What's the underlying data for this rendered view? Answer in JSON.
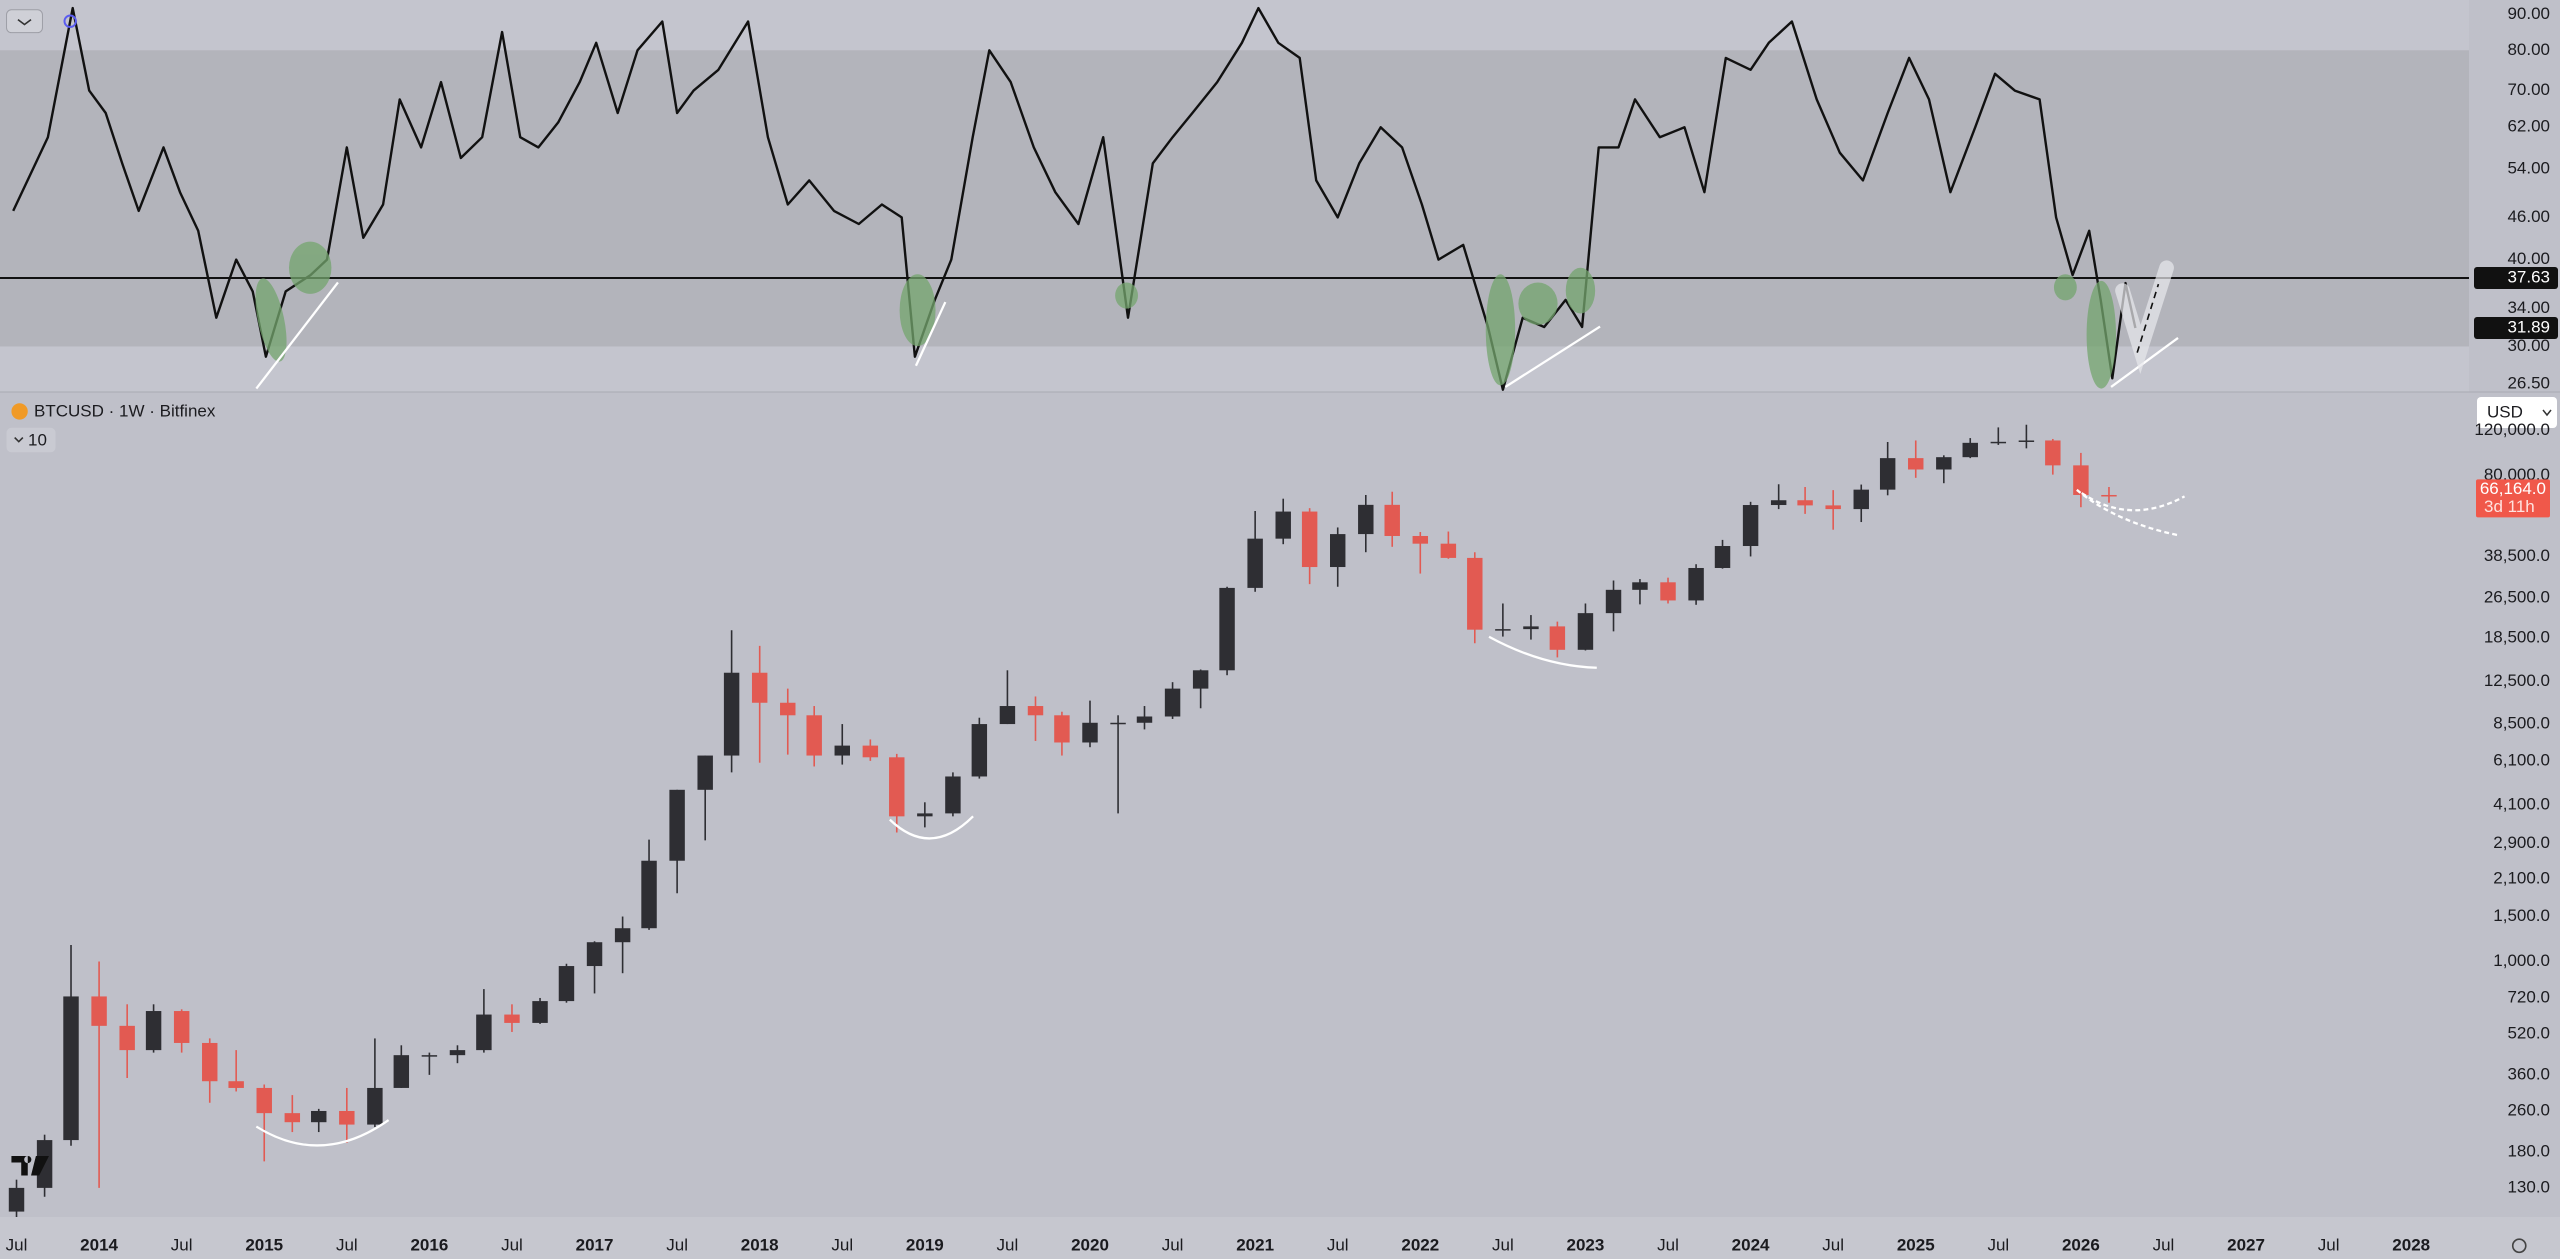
{
  "chart_data": [
    {
      "type": "line",
      "color": "#111111",
      "log": true,
      "band": [
        30,
        80
      ],
      "hline": 37.63,
      "last_value": 31.89,
      "xlim": [
        2013.4,
        2028.35
      ],
      "ylim": [
        25.8,
        94.5
      ],
      "yticks": [
        {
          "value": 26.5,
          "label": "26.50"
        },
        {
          "value": 30,
          "label": "30.00"
        },
        {
          "value": 34,
          "label": "34.00"
        },
        {
          "value": 40,
          "label": "40.00"
        },
        {
          "value": 46,
          "label": "46.00"
        },
        {
          "value": 54,
          "label": "54.00"
        },
        {
          "value": 62,
          "label": "62.00"
        },
        {
          "value": 70,
          "label": "70.00"
        },
        {
          "value": 80,
          "label": "80.00"
        },
        {
          "value": 90,
          "label": "90.00"
        }
      ],
      "x": [
        2013.48,
        2013.69,
        2013.84,
        2013.94,
        2014.04,
        2014.14,
        2014.24,
        2014.39,
        2014.49,
        2014.6,
        2014.71,
        2014.83,
        2014.93,
        2015.01,
        2015.13,
        2015.28,
        2015.38,
        2015.5,
        2015.6,
        2015.72,
        2015.82,
        2015.95,
        2016.07,
        2016.19,
        2016.32,
        2016.44,
        2016.55,
        2016.66,
        2016.78,
        2016.91,
        2017.01,
        2017.14,
        2017.26,
        2017.41,
        2017.5,
        2017.6,
        2017.75,
        2017.93,
        2018.05,
        2018.17,
        2018.3,
        2018.45,
        2018.6,
        2018.74,
        2018.86,
        2018.94,
        2019.06,
        2019.16,
        2019.29,
        2019.39,
        2019.52,
        2019.66,
        2019.79,
        2019.93,
        2020.08,
        2020.23,
        2020.38,
        2020.5,
        2020.62,
        2020.77,
        2020.92,
        2021.02,
        2021.14,
        2021.27,
        2021.37,
        2021.5,
        2021.63,
        2021.76,
        2021.89,
        2022.01,
        2022.11,
        2022.26,
        2022.41,
        2022.5,
        2022.62,
        2022.75,
        2022.88,
        2022.98,
        2023.08,
        2023.2,
        2023.3,
        2023.45,
        2023.6,
        2023.72,
        2023.85,
        2024.0,
        2024.11,
        2024.25,
        2024.4,
        2024.54,
        2024.68,
        2024.83,
        2024.96,
        2025.08,
        2025.21,
        2025.36,
        2025.48,
        2025.6,
        2025.75,
        2025.85,
        2025.95,
        2026.05,
        2026.12,
        2026.19,
        2026.27,
        2026.33
      ],
      "values": [
        47,
        60,
        92,
        70,
        65,
        55,
        47,
        58,
        50,
        44,
        33,
        40,
        36,
        29,
        36,
        38,
        40,
        58,
        43,
        48,
        68,
        58,
        72,
        56,
        60,
        85,
        60,
        58,
        63,
        72,
        82,
        65,
        80,
        88,
        65,
        70,
        75,
        88,
        60,
        48,
        52,
        47,
        45,
        48,
        46,
        29,
        35,
        40,
        60,
        80,
        72,
        58,
        50,
        45,
        60,
        33,
        55,
        60,
        65,
        72,
        82,
        92,
        82,
        78,
        52,
        46,
        55,
        62,
        58,
        48,
        40,
        42,
        32,
        26,
        33,
        32,
        35,
        32,
        58,
        58,
        68,
        60,
        62,
        50,
        78,
        75,
        82,
        88,
        68,
        57,
        52,
        65,
        78,
        68,
        50,
        62,
        74,
        70,
        68,
        46,
        38,
        44,
        35,
        27,
        37,
        31.89
      ]
    },
    {
      "type": "candlestick",
      "title": "BTCUSD · 1W · Bitfinex",
      "log": true,
      "up_color": "#2e2e33",
      "down_color": "#e25a52",
      "last_price": {
        "value": 66164,
        "label": "66,164.0"
      },
      "countdown": "3d 11h",
      "xlim": [
        2013.4,
        2028.35
      ],
      "ylim": [
        100,
        169500
      ],
      "yticks": [
        {
          "value": 130,
          "label": "130.0"
        },
        {
          "value": 180,
          "label": "180.0"
        },
        {
          "value": 260,
          "label": "260.0"
        },
        {
          "value": 360,
          "label": "360.0"
        },
        {
          "value": 520,
          "label": "520.0"
        },
        {
          "value": 720,
          "label": "720.0"
        },
        {
          "value": 1000,
          "label": "1,000.0"
        },
        {
          "value": 1500,
          "label": "1,500.0"
        },
        {
          "value": 2100,
          "label": "2,100.0"
        },
        {
          "value": 2900,
          "label": "2,900.0"
        },
        {
          "value": 4100,
          "label": "4,100.0"
        },
        {
          "value": 6100,
          "label": "6,100.0"
        },
        {
          "value": 8500,
          "label": "8,500.0"
        },
        {
          "value": 12500,
          "label": "12,500.0"
        },
        {
          "value": 18500,
          "label": "18,500.0"
        },
        {
          "value": 26500,
          "label": "26,500.0"
        },
        {
          "value": 38500,
          "label": "38,500.0"
        },
        {
          "value": 80000,
          "label": "80,000.0"
        },
        {
          "value": 120000,
          "label": "120,000.0"
        }
      ],
      "xticks": [
        {
          "value": 2013.5,
          "label": "Jul"
        },
        2014,
        {
          "value": 2014.5,
          "label": "Jul"
        },
        2015,
        {
          "value": 2015.5,
          "label": "Jul"
        },
        2016,
        {
          "value": 2016.5,
          "label": "Jul"
        },
        2017,
        {
          "value": 2017.5,
          "label": "Jul"
        },
        2018,
        {
          "value": 2018.5,
          "label": "Jul"
        },
        2019,
        {
          "value": 2019.5,
          "label": "Jul"
        },
        2020,
        {
          "value": 2020.5,
          "label": "Jul"
        },
        2021,
        {
          "value": 2021.5,
          "label": "Jul"
        },
        2022,
        {
          "value": 2022.5,
          "label": "Jul"
        },
        2023,
        {
          "value": 2023.5,
          "label": "Jul"
        },
        2024,
        {
          "value": 2024.5,
          "label": "Jul"
        },
        2025,
        {
          "value": 2025.5,
          "label": "Jul"
        },
        2026,
        {
          "value": 2026.5,
          "label": "Jul"
        },
        2027,
        {
          "value": 2027.5,
          "label": "Jul"
        },
        2028
      ],
      "x": [
        2013.5,
        2013.67,
        2013.83,
        2014,
        2014.17,
        2014.33,
        2014.5,
        2014.67,
        2014.83,
        2015,
        2015.17,
        2015.33,
        2015.5,
        2015.67,
        2015.83,
        2016,
        2016.17,
        2016.33,
        2016.5,
        2016.67,
        2016.83,
        2017,
        2017.17,
        2017.33,
        2017.5,
        2017.67,
        2017.83,
        2018,
        2018.17,
        2018.33,
        2018.5,
        2018.67,
        2018.83,
        2019,
        2019.17,
        2019.33,
        2019.5,
        2019.67,
        2019.83,
        2020,
        2020.17,
        2020.33,
        2020.5,
        2020.67,
        2020.83,
        2021,
        2021.17,
        2021.33,
        2021.5,
        2021.67,
        2021.83,
        2022,
        2022.17,
        2022.33,
        2022.5,
        2022.67,
        2022.83,
        2023,
        2023.17,
        2023.33,
        2023.5,
        2023.67,
        2023.83,
        2024,
        2024.17,
        2024.33,
        2024.5,
        2024.67,
        2024.83,
        2025,
        2025.17,
        2025.33,
        2025.5,
        2025.67,
        2025.83,
        2026,
        2026.17
      ],
      "open": [
        105,
        130,
        200,
        730,
        560,
        450,
        640,
        480,
        340,
        320,
        255,
        235,
        260,
        230,
        320,
        430,
        430,
        450,
        620,
        575,
        700,
        960,
        1190,
        1350,
        2480,
        4700,
        6400,
        13500,
        10300,
        9200,
        6400,
        7000,
        6300,
        3700,
        3800,
        5300,
        8500,
        10000,
        9200,
        7200,
        8600,
        8600,
        9100,
        11700,
        13800,
        29000,
        45200,
        57700,
        35000,
        47100,
        61300,
        46300,
        43200,
        38000,
        19900,
        20000,
        20500,
        16600,
        23100,
        28500,
        30500,
        25900,
        34700,
        42300,
        61200,
        63900,
        61000,
        59000,
        70300,
        93400,
        84300,
        94200,
        107200,
        108200,
        109500,
        87500,
        67000
      ],
      "high": [
        140,
        210,
        1160,
        1000,
        680,
        680,
        650,
        500,
        450,
        330,
        300,
        265,
        320,
        500,
        470,
        440,
        470,
        780,
        680,
        720,
        980,
        1200,
        1500,
        3000,
        4700,
        6400,
        19800,
        17200,
        11700,
        10000,
        8500,
        7400,
        6500,
        4200,
        5500,
        9000,
        13800,
        10900,
        9500,
        10500,
        9200,
        10000,
        12400,
        13900,
        29300,
        58000,
        64800,
        59500,
        50000,
        67000,
        69000,
        48000,
        48200,
        40000,
        25200,
        22700,
        21400,
        25200,
        31000,
        31400,
        31800,
        35900,
        44700,
        63000,
        73800,
        72000,
        70000,
        73600,
        108000,
        109500,
        95800,
        111900,
        123200,
        126200,
        111000,
        97900,
        72000
      ],
      "low": [
        100,
        120,
        190,
        130,
        350,
        440,
        440,
        280,
        310,
        165,
        215,
        215,
        195,
        225,
        320,
        360,
        400,
        440,
        530,
        570,
        690,
        750,
        900,
        1330,
        1850,
        2980,
        5500,
        6000,
        6450,
        5800,
        5900,
        6100,
        3200,
        3350,
        3700,
        5200,
        8500,
        7300,
        6400,
        6900,
        3800,
        8100,
        8900,
        9800,
        13200,
        28000,
        43000,
        30000,
        29300,
        40000,
        42000,
        33000,
        37700,
        17600,
        18700,
        18200,
        15500,
        16500,
        19600,
        25000,
        25200,
        24900,
        34500,
        38500,
        59000,
        56500,
        49000,
        52500,
        66800,
        78200,
        74500,
        93400,
        105200,
        102000,
        80500,
        60000,
        62500
      ],
      "close": [
        130,
        200,
        730,
        560,
        450,
        640,
        480,
        340,
        320,
        255,
        235,
        260,
        230,
        320,
        430,
        430,
        450,
        620,
        575,
        700,
        960,
        1190,
        1350,
        2480,
        4700,
        6400,
        13500,
        10300,
        9200,
        6400,
        7000,
        6300,
        3700,
        3800,
        5300,
        8500,
        10000,
        9200,
        7200,
        8600,
        8600,
        9100,
        11700,
        13800,
        29000,
        45200,
        57700,
        35000,
        47100,
        61300,
        46300,
        43200,
        38000,
        19900,
        20000,
        20500,
        16600,
        23100,
        28500,
        30500,
        25900,
        34700,
        42300,
        61200,
        63900,
        61000,
        59000,
        70300,
        93400,
        84300,
        94200,
        107200,
        108200,
        109500,
        87500,
        67000,
        66164
      ]
    }
  ],
  "ui": {
    "collapsed_count": 10,
    "currency": "USD"
  }
}
